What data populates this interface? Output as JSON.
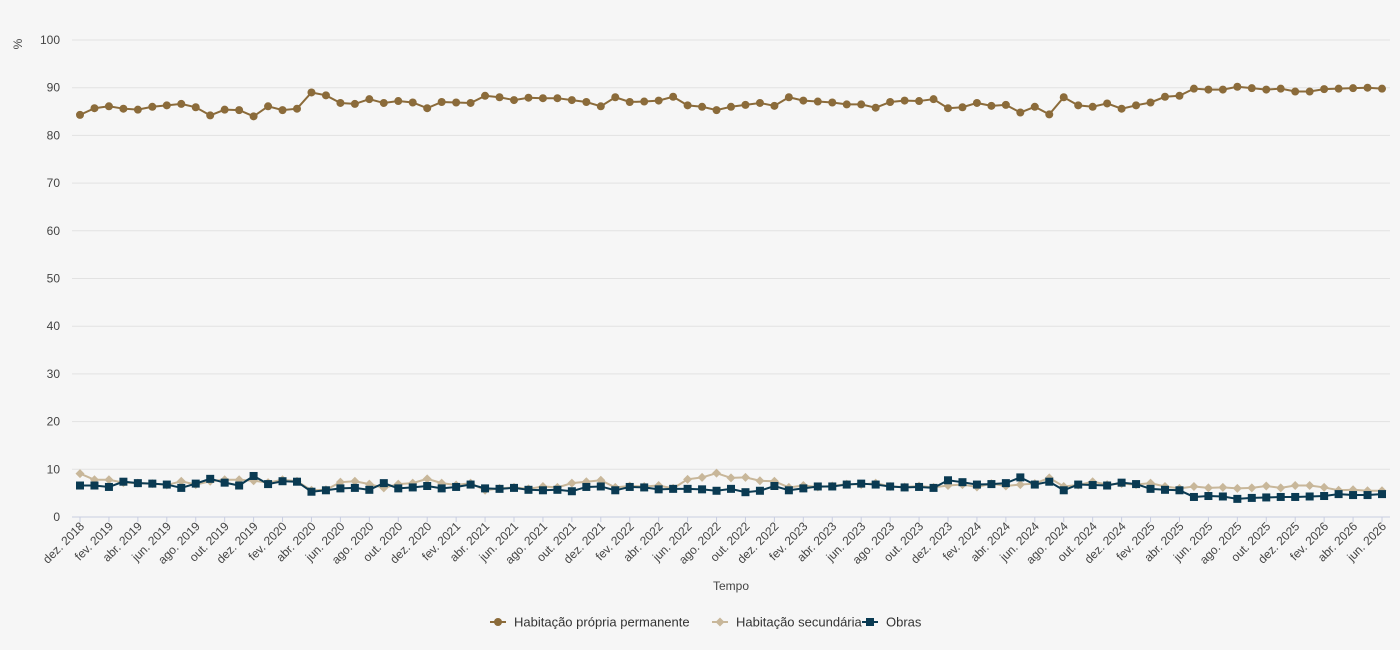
{
  "chart_data": {
    "type": "line",
    "ylabel": "%",
    "xlabel": "Tempo",
    "ylim": [
      0,
      100
    ],
    "yticks": [
      0,
      10,
      20,
      30,
      40,
      50,
      60,
      70,
      80,
      90,
      100
    ],
    "grid": true,
    "legend_position": "bottom-center",
    "x": [
      "dez. 2018",
      "jan. 2019",
      "fev. 2019",
      "mar. 2019",
      "abr. 2019",
      "mai. 2019",
      "jun. 2019",
      "jul. 2019",
      "ago. 2019",
      "set. 2019",
      "out. 2019",
      "nov. 2019",
      "dez. 2019",
      "jan. 2020",
      "fev. 2020",
      "mar. 2020",
      "abr. 2020",
      "mai. 2020",
      "jun. 2020",
      "jul. 2020",
      "ago. 2020",
      "set. 2020",
      "out. 2020",
      "nov. 2020",
      "dez. 2020",
      "jan. 2021",
      "fev. 2021",
      "mar. 2021",
      "abr. 2021",
      "mai. 2021",
      "jun. 2021",
      "jul. 2021",
      "ago. 2021",
      "set. 2021",
      "out. 2021",
      "nov. 2021",
      "dez. 2021",
      "jan. 2022",
      "fev. 2022",
      "mar. 2022",
      "abr. 2022",
      "mai. 2022",
      "jun. 2022",
      "jul. 2022",
      "ago. 2022",
      "set. 2022",
      "out. 2022",
      "nov. 2022",
      "dez. 2022",
      "jan. 2023",
      "fev. 2023",
      "mar. 2023",
      "abr. 2023",
      "mai. 2023",
      "jun. 2023",
      "jul. 2023",
      "ago. 2023",
      "set. 2023",
      "out. 2023",
      "nov. 2023",
      "dez. 2023",
      "jan. 2024",
      "fev. 2024",
      "mar. 2024",
      "abr. 2024",
      "mai. 2024",
      "jun. 2024",
      "jul. 2024",
      "ago. 2024",
      "set. 2024",
      "out. 2024",
      "nov. 2024",
      "dez. 2024",
      "jan. 2025",
      "fev. 2025",
      "mar. 2025",
      "abr. 2025",
      "mai. 2025",
      "jun. 2025",
      "jul. 2025",
      "ago. 2025",
      "set. 2025",
      "out. 2025",
      "nov. 2025",
      "dez. 2025",
      "jan. 2026",
      "fev. 2026",
      "mar. 2026",
      "abr. 2026",
      "mai. 2026",
      "jun. 2026"
    ],
    "x_tick_labels": [
      "dez. 2018",
      "fev. 2019",
      "abr. 2019",
      "jun. 2019",
      "ago. 2019",
      "out. 2019",
      "dez. 2019",
      "fev. 2020",
      "abr. 2020",
      "jun. 2020",
      "ago. 2020",
      "out. 2020",
      "dez. 2020",
      "fev. 2021",
      "abr. 2021",
      "jun. 2021",
      "ago. 2021",
      "out. 2021",
      "dez. 2021",
      "fev. 2022",
      "abr. 2022",
      "jun. 2022",
      "ago. 2022",
      "out. 2022",
      "dez. 2022",
      "fev. 2023",
      "abr. 2023",
      "jun. 2023",
      "ago. 2023",
      "out. 2023",
      "dez. 2023",
      "fev. 2024",
      "abr. 2024",
      "jun. 2024",
      "ago. 2024",
      "out. 2024",
      "dez. 2024",
      "fev. 2025",
      "abr. 2025",
      "jun. 2025",
      "ago. 2025",
      "out. 2025",
      "dez. 2025",
      "fev. 2026",
      "abr. 2026",
      "jun. 2026"
    ],
    "series": [
      {
        "name": "Habitação própria permanente",
        "color": "#8b6b3a",
        "marker": "circle",
        "values": [
          84.3,
          85.7,
          86.1,
          85.6,
          85.4,
          86.0,
          86.3,
          86.6,
          85.9,
          84.2,
          85.4,
          85.3,
          84.0,
          86.1,
          85.3,
          85.6,
          89.0,
          88.4,
          86.8,
          86.6,
          87.6,
          86.8,
          87.2,
          86.9,
          85.7,
          87.0,
          86.9,
          86.8,
          88.3,
          88.0,
          87.4,
          87.9,
          87.8,
          87.8,
          87.4,
          87.0,
          86.1,
          88.0,
          87.0,
          87.1,
          87.3,
          88.1,
          86.3,
          86.0,
          85.3,
          86.0,
          86.4,
          86.8,
          86.2,
          88.0,
          87.3,
          87.1,
          86.9,
          86.5,
          86.5,
          85.8,
          87.0,
          87.3,
          87.2,
          87.6,
          85.7,
          85.9,
          86.8,
          86.2,
          86.4,
          84.8,
          86.0,
          84.4,
          88.0,
          86.3,
          86.0,
          86.7,
          85.6,
          86.3,
          86.9,
          88.1,
          88.3,
          89.8,
          89.6,
          89.6,
          90.2,
          89.9,
          89.6,
          89.8,
          89.2,
          89.2,
          89.7,
          89.8,
          89.9,
          90.0,
          89.8
        ]
      },
      {
        "name": "Habitação secundária",
        "color": "#c8b79a",
        "marker": "diamond",
        "values": [
          9.1,
          7.8,
          7.8,
          7.2,
          7.1,
          7.0,
          6.7,
          7.5,
          6.8,
          7.5,
          7.8,
          7.8,
          7.6,
          7.2,
          7.8,
          7.5,
          5.6,
          5.7,
          7.3,
          7.5,
          6.9,
          6.1,
          6.9,
          7.1,
          8.0,
          7.1,
          6.7,
          7.1,
          5.6,
          6.0,
          6.2,
          5.9,
          6.4,
          6.2,
          7.1,
          7.4,
          7.7,
          6.2,
          6.5,
          6.4,
          6.6,
          6.0,
          7.9,
          8.3,
          9.2,
          8.2,
          8.3,
          7.6,
          7.5,
          6.2,
          6.6,
          6.3,
          6.5,
          6.9,
          6.8,
          7.1,
          6.4,
          6.3,
          6.5,
          6.2,
          6.6,
          6.8,
          6.3,
          7.0,
          6.5,
          6.8,
          7.0,
          8.2,
          6.4,
          6.7,
          7.4,
          6.8,
          7.0,
          6.8,
          7.1,
          6.4,
          6.0,
          6.4,
          6.1,
          6.2,
          6.0,
          6.1,
          6.5,
          6.1,
          6.6,
          6.6,
          6.2,
          5.6,
          5.7,
          5.5,
          5.5
        ]
      },
      {
        "name": "Obras",
        "color": "#0a3a52",
        "marker": "square",
        "values": [
          6.6,
          6.6,
          6.3,
          7.4,
          7.1,
          7.0,
          6.8,
          6.1,
          7.0,
          8.0,
          7.2,
          6.6,
          8.6,
          6.9,
          7.5,
          7.4,
          5.3,
          5.6,
          6.0,
          6.1,
          5.7,
          7.1,
          6.0,
          6.2,
          6.5,
          6.0,
          6.3,
          6.8,
          6.0,
          5.9,
          6.1,
          5.7,
          5.6,
          5.7,
          5.4,
          6.3,
          6.4,
          5.6,
          6.3,
          6.2,
          5.8,
          5.9,
          5.9,
          5.8,
          5.5,
          5.9,
          5.2,
          5.5,
          6.5,
          5.6,
          6.0,
          6.4,
          6.4,
          6.8,
          7.0,
          6.8,
          6.4,
          6.2,
          6.3,
          6.1,
          7.7,
          7.3,
          6.8,
          6.9,
          7.1,
          8.3,
          6.8,
          7.4,
          5.6,
          6.8,
          6.7,
          6.6,
          7.2,
          6.9,
          5.9,
          5.7,
          5.6,
          4.2,
          4.4,
          4.3,
          3.8,
          4.0,
          4.1,
          4.2,
          4.2,
          4.3,
          4.4,
          4.8,
          4.6,
          4.6,
          4.8
        ]
      }
    ]
  }
}
